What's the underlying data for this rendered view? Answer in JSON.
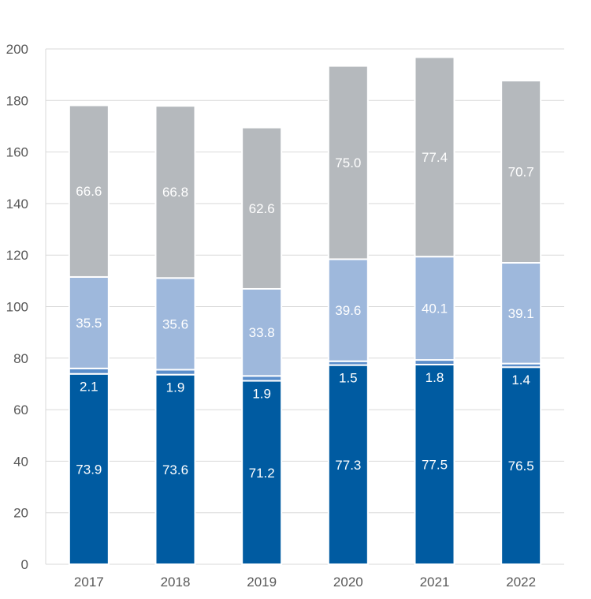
{
  "chart_data": {
    "type": "bar",
    "stacked": true,
    "title": "",
    "xlabel": "",
    "ylabel": "",
    "ylim": [
      0,
      200
    ],
    "yticks": [
      0,
      20,
      40,
      60,
      80,
      100,
      120,
      140,
      160,
      180,
      200
    ],
    "grid": true,
    "legend": "none",
    "categories": [
      "2017",
      "2018",
      "2019",
      "2020",
      "2021",
      "2022"
    ],
    "series": [
      {
        "values": [
          73.9,
          73.6,
          71.2,
          77.3,
          77.5,
          76.5
        ],
        "color": "#005ba1"
      },
      {
        "values": [
          2.1,
          1.9,
          1.9,
          1.5,
          1.8,
          1.4
        ],
        "color": "#5b8ecb"
      },
      {
        "values": [
          35.5,
          35.6,
          33.8,
          39.6,
          40.1,
          39.1
        ],
        "color": "#9eb8dc"
      },
      {
        "values": [
          66.6,
          66.8,
          62.6,
          75.0,
          77.4,
          70.7
        ],
        "color": "#b5b9bd"
      }
    ],
    "data_labels": [
      [
        "73.9",
        "73.6",
        "71.2",
        "77.3",
        "77.5",
        "76.5"
      ],
      [
        "2.1",
        "1.9",
        "1.9",
        "1.5",
        "1.8",
        "1.4"
      ],
      [
        "35.5",
        "35.6",
        "33.8",
        "39.6",
        "40.1",
        "39.1"
      ],
      [
        "66.6",
        "66.8",
        "62.6",
        "75.0",
        "77.4",
        "70.7"
      ]
    ]
  }
}
